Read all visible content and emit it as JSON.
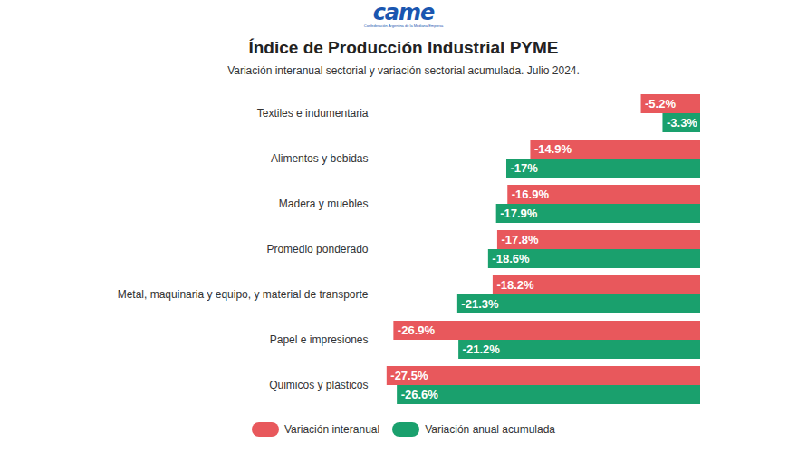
{
  "chart_data": {
    "type": "bar",
    "orientation": "horizontal",
    "logo": "came",
    "logo_caption": "Confederación Argentina de la Mediana Empresa",
    "title": "Índice de Producción Industrial PYME",
    "subtitle": "Variación interanual sectorial y variación sectorial acumulada. Julio 2024.",
    "categories": [
      "Textiles e indumentaria",
      "Alimentos y bebidas",
      "Madera y muebles",
      "Promedio ponderado",
      "Metal, maquinaria y equipo, y material de transporte",
      "Papel e impresiones",
      "Quimicos y plásticos"
    ],
    "series": [
      {
        "name": "Variación interanual",
        "color": "#e8585c",
        "values": [
          -5.2,
          -14.9,
          -16.9,
          -17.8,
          -18.2,
          -26.9,
          -27.5
        ],
        "value_labels": [
          "-5.2%",
          "-14.9%",
          "-16.9%",
          "-17.8%",
          "-18.2%",
          "-26.9%",
          "-27.5%"
        ]
      },
      {
        "name": "Variación anual acumulada",
        "color": "#1aa06d",
        "values": [
          -3.3,
          -17,
          -17.9,
          -18.6,
          -21.3,
          -21.2,
          -26.6
        ],
        "value_labels": [
          "-3.3%",
          "-17%",
          "-17.9%",
          "-18.6%",
          "-21.3%",
          "-21.2%",
          "-26.6%"
        ]
      }
    ],
    "xlim": [
      -28.2,
      0
    ],
    "data_labels": true,
    "tick_labels": "y",
    "grid": false,
    "legend": "bottom"
  }
}
